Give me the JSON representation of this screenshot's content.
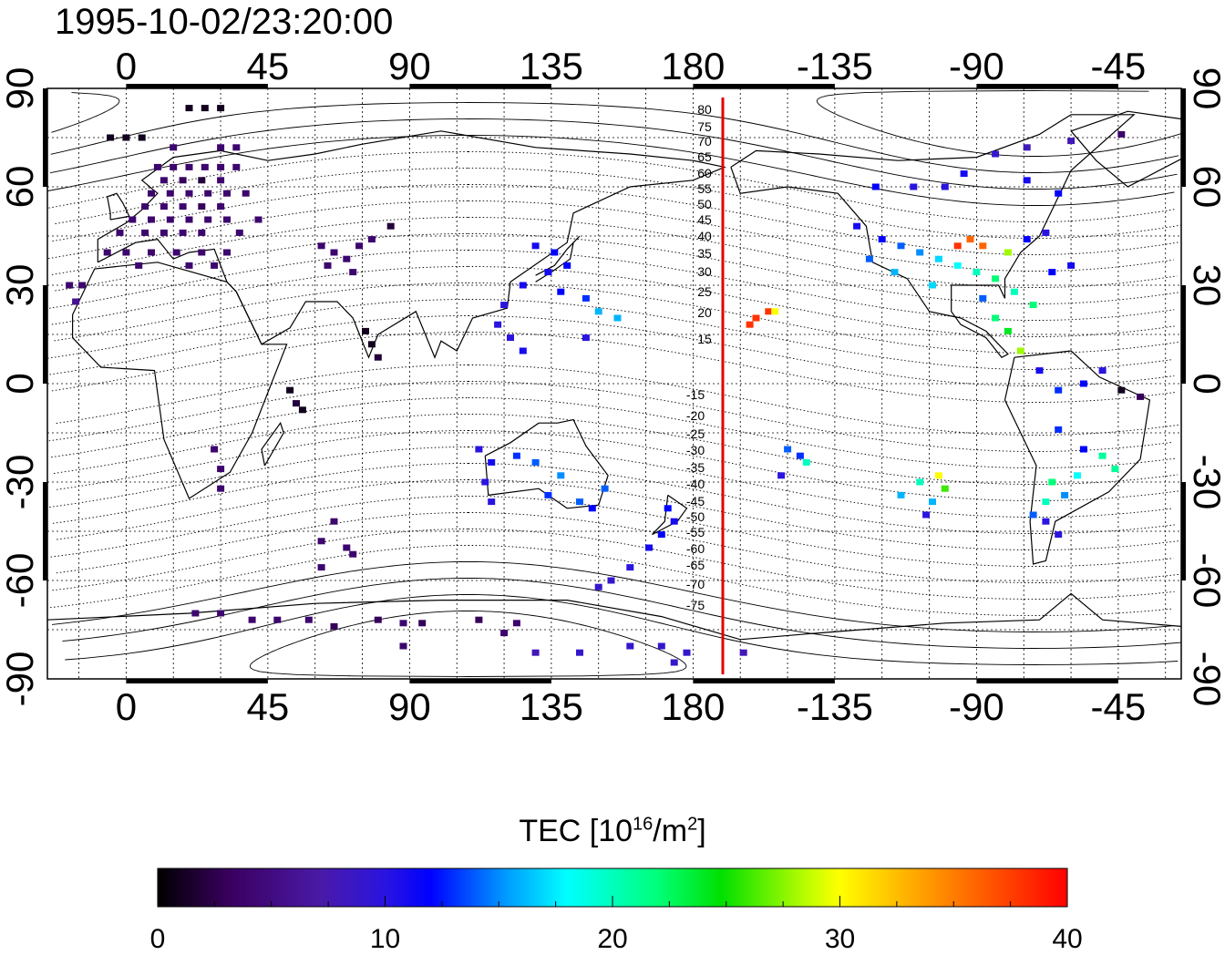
{
  "timestamp": "1995-10-02/23:20:00",
  "map": {
    "lon_ticks": [
      "0",
      "45",
      "90",
      "135",
      "180",
      "-135",
      "-90",
      "-45"
    ],
    "lat_ticks_left": [
      "90",
      "60",
      "30",
      "0",
      "-30",
      "-60",
      "-90"
    ],
    "lat_ticks_right": [
      "90",
      "60",
      "30",
      "0",
      "-30",
      "-60",
      "-90"
    ],
    "magnetic_labels": [
      "80",
      "75",
      "70",
      "65",
      "60",
      "55",
      "50",
      "45",
      "40",
      "35",
      "30",
      "25",
      "20",
      "15",
      "-15",
      "-20",
      "-25",
      "-30",
      "-35",
      "-40",
      "-45",
      "-50",
      "-55",
      "-60",
      "-65",
      "-70",
      "-75"
    ],
    "terminator_line_color": "#e00000",
    "grid": true
  },
  "colorbar": {
    "title_prefix": "TEC  [10",
    "title_exp": "16",
    "title_mid": "/m",
    "title_exp2": "2",
    "title_suffix": "]",
    "ticks": [
      "0",
      "10",
      "20",
      "30",
      "40"
    ],
    "min": 0,
    "max": 40
  },
  "chart_data": {
    "type": "heatmap",
    "title": "1995-10-02/23:20:00",
    "xlabel": "",
    "ylabel": "",
    "x_range": [
      -25,
      335
    ],
    "y_range": [
      -90,
      90
    ],
    "colorbar_range": [
      0,
      40
    ],
    "colorbar_label": "TEC [10^16/m^2]",
    "note_values": "lon, lat, TEC",
    "points": [
      [
        -5,
        75,
        1
      ],
      [
        0,
        75,
        1
      ],
      [
        5,
        75,
        1
      ],
      [
        20,
        84,
        1
      ],
      [
        25,
        84,
        1
      ],
      [
        30,
        84,
        1
      ],
      [
        15,
        72,
        4
      ],
      [
        30,
        72,
        4
      ],
      [
        35,
        72,
        4
      ],
      [
        10,
        66,
        4
      ],
      [
        15,
        66,
        4
      ],
      [
        20,
        66,
        4
      ],
      [
        25,
        66,
        4
      ],
      [
        30,
        66,
        4
      ],
      [
        35,
        66,
        4
      ],
      [
        12,
        62,
        4
      ],
      [
        18,
        62,
        3
      ],
      [
        24,
        62,
        2
      ],
      [
        30,
        62,
        4
      ],
      [
        8,
        58,
        4
      ],
      [
        14,
        58,
        4
      ],
      [
        20,
        58,
        4
      ],
      [
        26,
        58,
        4
      ],
      [
        32,
        58,
        4
      ],
      [
        38,
        58,
        4
      ],
      [
        6,
        54,
        4
      ],
      [
        12,
        54,
        4
      ],
      [
        18,
        54,
        4
      ],
      [
        24,
        54,
        3
      ],
      [
        30,
        54,
        4
      ],
      [
        2,
        50,
        4
      ],
      [
        8,
        50,
        4
      ],
      [
        14,
        50,
        4
      ],
      [
        20,
        50,
        4
      ],
      [
        26,
        50,
        4
      ],
      [
        32,
        50,
        4
      ],
      [
        42,
        50,
        4
      ],
      [
        -2,
        46,
        4
      ],
      [
        6,
        46,
        4
      ],
      [
        12,
        46,
        4
      ],
      [
        18,
        46,
        4
      ],
      [
        24,
        46,
        4
      ],
      [
        36,
        46,
        4
      ],
      [
        -6,
        40,
        4
      ],
      [
        0,
        40,
        4
      ],
      [
        8,
        40,
        4
      ],
      [
        16,
        40,
        4
      ],
      [
        24,
        40,
        4
      ],
      [
        32,
        40,
        4
      ],
      [
        4,
        36,
        4
      ],
      [
        20,
        36,
        4
      ],
      [
        28,
        36,
        4
      ],
      [
        -18,
        30,
        4
      ],
      [
        -14,
        30,
        4
      ],
      [
        -16,
        25,
        6
      ],
      [
        62,
        42,
        4
      ],
      [
        66,
        40,
        4
      ],
      [
        70,
        38,
        4
      ],
      [
        74,
        42,
        4
      ],
      [
        78,
        44,
        4
      ],
      [
        64,
        36,
        4
      ],
      [
        72,
        34,
        4
      ],
      [
        84,
        48,
        2
      ],
      [
        76,
        16,
        1
      ],
      [
        78,
        12,
        1
      ],
      [
        80,
        8,
        2
      ],
      [
        52,
        -2,
        1
      ],
      [
        54,
        -6,
        2
      ],
      [
        56,
        -8,
        1
      ],
      [
        28,
        -20,
        4
      ],
      [
        30,
        -26,
        4
      ],
      [
        30,
        -32,
        4
      ],
      [
        66,
        -42,
        4
      ],
      [
        62,
        -48,
        4
      ],
      [
        70,
        -50,
        4
      ],
      [
        72,
        -52,
        4
      ],
      [
        62,
        -56,
        4
      ],
      [
        22,
        -70,
        4
      ],
      [
        30,
        -70,
        4
      ],
      [
        40,
        -72,
        4
      ],
      [
        48,
        -72,
        4
      ],
      [
        58,
        -72,
        4
      ],
      [
        66,
        -74,
        3
      ],
      [
        80,
        -72,
        3
      ],
      [
        88,
        -73,
        4
      ],
      [
        94,
        -73,
        3
      ],
      [
        112,
        -72,
        3
      ],
      [
        124,
        -73,
        4
      ],
      [
        120,
        -76,
        4
      ],
      [
        88,
        -80,
        4
      ],
      [
        130,
        -82,
        8
      ],
      [
        144,
        -82,
        9
      ],
      [
        160,
        -80,
        9
      ],
      [
        170,
        -80,
        9
      ],
      [
        178,
        -82,
        9
      ],
      [
        174,
        -85,
        9
      ],
      [
        196,
        -82,
        8
      ],
      [
        130,
        42,
        11
      ],
      [
        136,
        40,
        12
      ],
      [
        140,
        36,
        12
      ],
      [
        134,
        34,
        11
      ],
      [
        126,
        30,
        11
      ],
      [
        120,
        24,
        10
      ],
      [
        118,
        18,
        10
      ],
      [
        122,
        14,
        10
      ],
      [
        126,
        10,
        11
      ],
      [
        138,
        28,
        12
      ],
      [
        146,
        26,
        13
      ],
      [
        150,
        22,
        16
      ],
      [
        156,
        20,
        16
      ],
      [
        146,
        14,
        10
      ],
      [
        112,
        -20,
        10
      ],
      [
        116,
        -24,
        11
      ],
      [
        114,
        -30,
        10
      ],
      [
        116,
        -36,
        10
      ],
      [
        124,
        -22,
        13
      ],
      [
        130,
        -24,
        14
      ],
      [
        138,
        -28,
        15
      ],
      [
        134,
        -34,
        13
      ],
      [
        144,
        -36,
        14
      ],
      [
        148,
        -38,
        12
      ],
      [
        152,
        -32,
        14
      ],
      [
        172,
        -38,
        12
      ],
      [
        174,
        -42,
        11
      ],
      [
        170,
        -46,
        12
      ],
      [
        166,
        -50,
        11
      ],
      [
        160,
        -56,
        10
      ],
      [
        154,
        -60,
        9
      ],
      [
        150,
        -62,
        9
      ],
      [
        200,
        20,
        38
      ],
      [
        204,
        22,
        38
      ],
      [
        198,
        18,
        38
      ],
      [
        206,
        22,
        30
      ],
      [
        210,
        -20,
        14
      ],
      [
        214,
        -22,
        13
      ],
      [
        208,
        -28,
        10
      ],
      [
        216,
        -24,
        20
      ],
      [
        238,
        60,
        12
      ],
      [
        250,
        60,
        10
      ],
      [
        260,
        60,
        10
      ],
      [
        266,
        64,
        11
      ],
      [
        276,
        70,
        9
      ],
      [
        286,
        72,
        8
      ],
      [
        300,
        74,
        8
      ],
      [
        316,
        76,
        4
      ],
      [
        286,
        62,
        11
      ],
      [
        296,
        58,
        12
      ],
      [
        232,
        48,
        11
      ],
      [
        240,
        44,
        12
      ],
      [
        246,
        42,
        14
      ],
      [
        252,
        40,
        15
      ],
      [
        258,
        38,
        17
      ],
      [
        264,
        36,
        18
      ],
      [
        270,
        34,
        20
      ],
      [
        276,
        32,
        22
      ],
      [
        282,
        28,
        20
      ],
      [
        288,
        24,
        22
      ],
      [
        272,
        26,
        14
      ],
      [
        256,
        30,
        17
      ],
      [
        244,
        34,
        16
      ],
      [
        236,
        38,
        14
      ],
      [
        294,
        34,
        12
      ],
      [
        300,
        36,
        11
      ],
      [
        268,
        44,
        36
      ],
      [
        272,
        42,
        36
      ],
      [
        264,
        42,
        38
      ],
      [
        280,
        40,
        28
      ],
      [
        286,
        44,
        12
      ],
      [
        292,
        46,
        10
      ],
      [
        276,
        20,
        22
      ],
      [
        280,
        16,
        24
      ],
      [
        284,
        10,
        28
      ],
      [
        290,
        4,
        11
      ],
      [
        296,
        -2,
        13
      ],
      [
        304,
        0,
        12
      ],
      [
        310,
        4,
        10
      ],
      [
        316,
        -2,
        1
      ],
      [
        322,
        -4,
        3
      ],
      [
        296,
        -14,
        13
      ],
      [
        304,
        -20,
        12
      ],
      [
        310,
        -22,
        21
      ],
      [
        314,
        -26,
        21
      ],
      [
        302,
        -28,
        18
      ],
      [
        294,
        -30,
        22
      ],
      [
        298,
        -34,
        15
      ],
      [
        292,
        -36,
        20
      ],
      [
        288,
        -40,
        14
      ],
      [
        292,
        -42,
        10
      ],
      [
        296,
        -46,
        10
      ],
      [
        252,
        -30,
        20
      ],
      [
        256,
        -36,
        16
      ],
      [
        246,
        -34,
        16
      ],
      [
        254,
        -40,
        10
      ],
      [
        258,
        -28,
        30
      ],
      [
        260,
        -32,
        26
      ]
    ]
  }
}
